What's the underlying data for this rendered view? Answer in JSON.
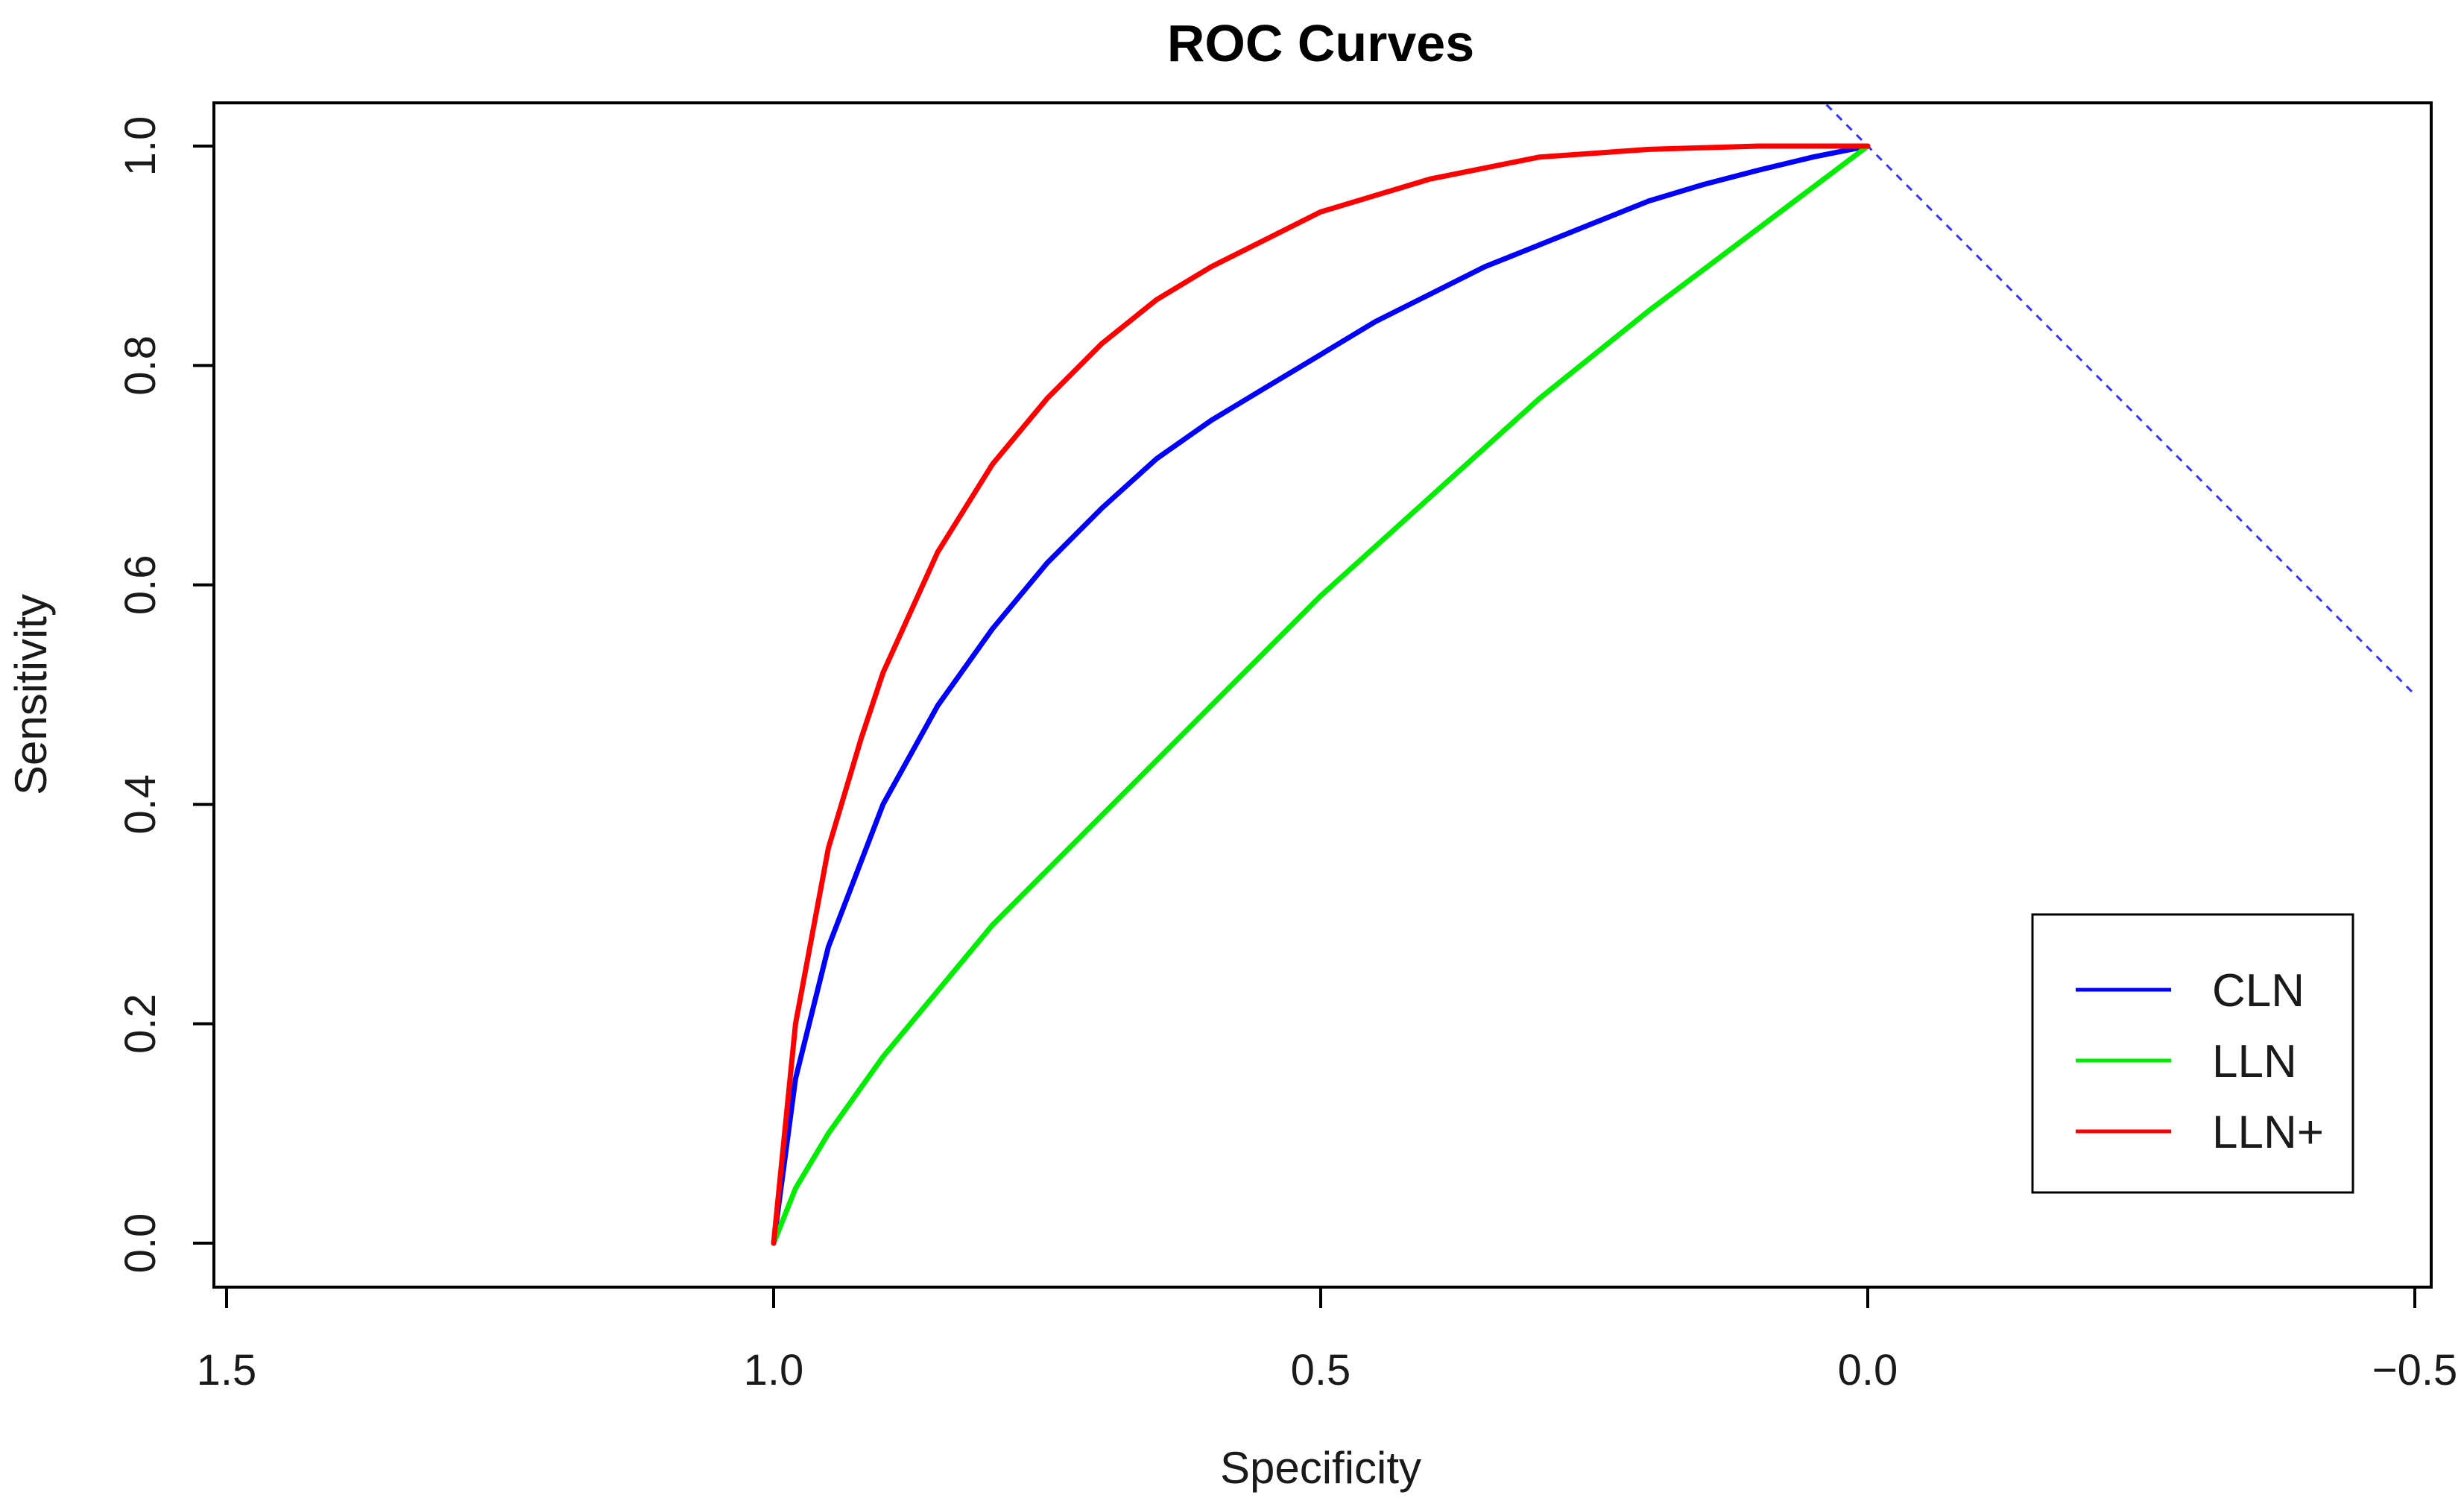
{
  "chart_data": {
    "type": "line",
    "title": "ROC Curves",
    "xlabel": "Specificity",
    "ylabel": "Sensitivity",
    "x_reversed": true,
    "xlim": [
      1.5,
      -0.5
    ],
    "ylim": [
      0.0,
      1.0
    ],
    "x_ticks": [
      {
        "value": 1.5,
        "label": "1.5"
      },
      {
        "value": 1.0,
        "label": "1.0"
      },
      {
        "value": 0.5,
        "label": "0.5"
      },
      {
        "value": 0.0,
        "label": "0.0"
      },
      {
        "value": -0.5,
        "label": "−0.5"
      }
    ],
    "y_ticks": [
      {
        "value": 0.0,
        "label": "0.0"
      },
      {
        "value": 0.2,
        "label": "0.2"
      },
      {
        "value": 0.4,
        "label": "0.4"
      },
      {
        "value": 0.6,
        "label": "0.6"
      },
      {
        "value": 0.8,
        "label": "0.8"
      },
      {
        "value": 1.0,
        "label": "1.0"
      }
    ],
    "grid": false,
    "legend_position": "bottom-right",
    "reference_line": {
      "name": "chance",
      "style": "dashed",
      "color": "#3333ff",
      "slope_intercept": [
        1.0,
        1.0
      ]
    },
    "series": [
      {
        "name": "CLN",
        "color": "#0000ff",
        "x": [
          1.0,
          0.98,
          0.95,
          0.9,
          0.85,
          0.8,
          0.75,
          0.7,
          0.65,
          0.6,
          0.55,
          0.5,
          0.45,
          0.4,
          0.35,
          0.3,
          0.25,
          0.2,
          0.15,
          0.1,
          0.05,
          0.0
        ],
        "y": [
          0.0,
          0.15,
          0.27,
          0.4,
          0.49,
          0.56,
          0.62,
          0.67,
          0.715,
          0.75,
          0.78,
          0.81,
          0.84,
          0.865,
          0.89,
          0.91,
          0.93,
          0.95,
          0.965,
          0.978,
          0.99,
          1.0
        ]
      },
      {
        "name": "LLN",
        "color": "#00ee00",
        "x": [
          1.0,
          0.98,
          0.95,
          0.9,
          0.8,
          0.7,
          0.6,
          0.5,
          0.4,
          0.3,
          0.2,
          0.1,
          0.0
        ],
        "y": [
          0.0,
          0.05,
          0.1,
          0.17,
          0.29,
          0.39,
          0.49,
          0.59,
          0.68,
          0.77,
          0.85,
          0.925,
          1.0
        ]
      },
      {
        "name": "LLN+",
        "color": "#ff0000",
        "x": [
          1.0,
          0.98,
          0.95,
          0.92,
          0.9,
          0.85,
          0.8,
          0.75,
          0.7,
          0.65,
          0.6,
          0.55,
          0.5,
          0.45,
          0.4,
          0.35,
          0.3,
          0.2,
          0.1,
          0.0
        ],
        "y": [
          0.0,
          0.2,
          0.36,
          0.46,
          0.52,
          0.63,
          0.71,
          0.77,
          0.82,
          0.86,
          0.89,
          0.915,
          0.94,
          0.955,
          0.97,
          0.98,
          0.99,
          0.997,
          1.0,
          1.0
        ]
      }
    ]
  }
}
